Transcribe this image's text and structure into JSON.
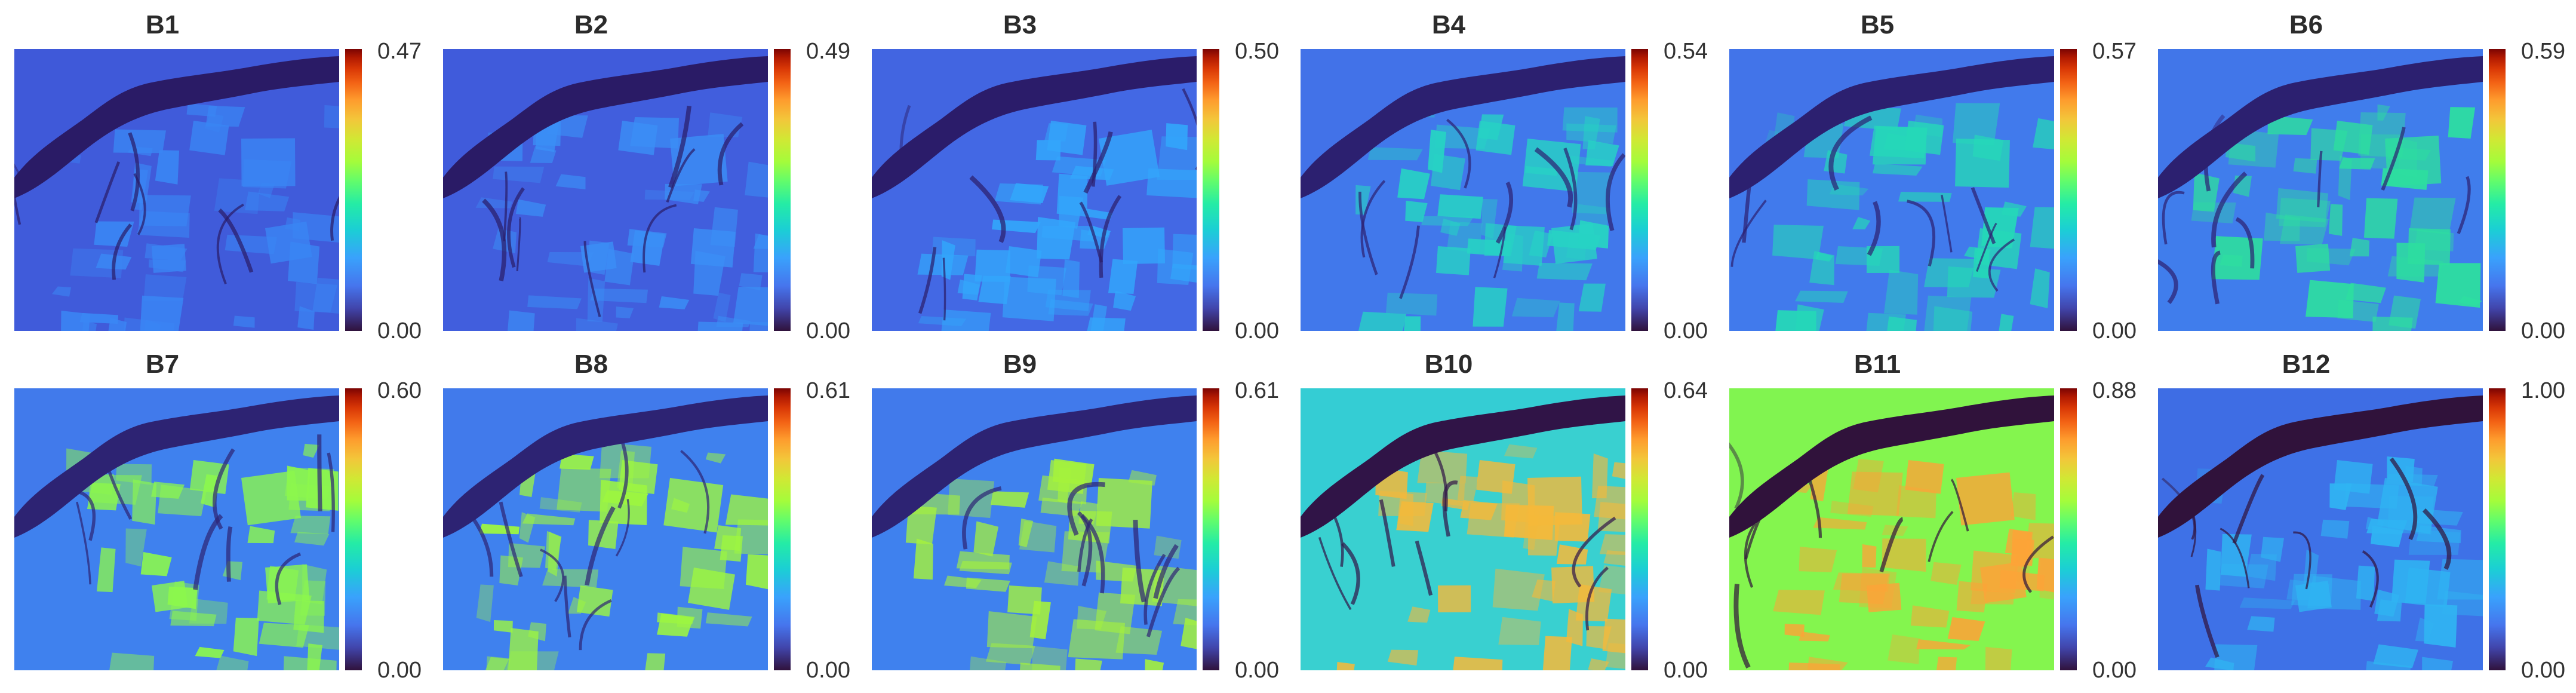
{
  "panels": [
    {
      "title": "B1",
      "max": "0.47",
      "min": "0.00",
      "theme": "#3e55d6",
      "land": "#4362df",
      "river": "#2a1b66",
      "field": "#3a86f4"
    },
    {
      "title": "B2",
      "max": "0.49",
      "min": "0.00",
      "theme": "#3f57d8",
      "land": "#4466e2",
      "river": "#2a1b66",
      "field": "#3b8ff6"
    },
    {
      "title": "B3",
      "max": "0.50",
      "min": "0.00",
      "theme": "#4160de",
      "land": "#4572ea",
      "river": "#2b1c6a",
      "field": "#33a6fb"
    },
    {
      "title": "B4",
      "max": "0.54",
      "min": "0.00",
      "theme": "#4468e3",
      "land": "#3f8cf4",
      "river": "#2c2070",
      "field": "#27d3c4"
    },
    {
      "title": "B5",
      "max": "0.57",
      "min": "0.00",
      "theme": "#4469e4",
      "land": "#3f8ff5",
      "river": "#2c2070",
      "field": "#25d8b8"
    },
    {
      "title": "B6",
      "max": "0.59",
      "min": "0.00",
      "theme": "#4469e4",
      "land": "#3d95f7",
      "river": "#2c2070",
      "field": "#2ddf9f"
    },
    {
      "title": "B7",
      "max": "0.60",
      "min": "0.00",
      "theme": "#446ce6",
      "land": "#3b9cf9",
      "river": "#2d2373",
      "field": "#8cf74c"
    },
    {
      "title": "B8",
      "max": "0.61",
      "min": "0.00",
      "theme": "#446ce6",
      "land": "#3b9cf9",
      "river": "#2d2373",
      "field": "#9df640"
    },
    {
      "title": "B9",
      "max": "0.61",
      "min": "0.00",
      "theme": "#446ce6",
      "land": "#3b9cf9",
      "river": "#2d2373",
      "field": "#a5f23c"
    },
    {
      "title": "B10",
      "max": "0.64",
      "min": "0.00",
      "theme": "#2ac8dc",
      "land": "#4dd9c2",
      "river": "#301447",
      "field": "#f5b93a"
    },
    {
      "title": "B11",
      "max": "0.88",
      "min": "0.00",
      "theme": "#7cf456",
      "land": "#8ef646",
      "river": "#30123b",
      "field": "#fca438"
    },
    {
      "title": "B12",
      "max": "1.00",
      "min": "0.00",
      "theme": "#3f66e0",
      "land": "#3d7ff0",
      "river": "#30123b",
      "field": "#30b4f2"
    }
  ]
}
